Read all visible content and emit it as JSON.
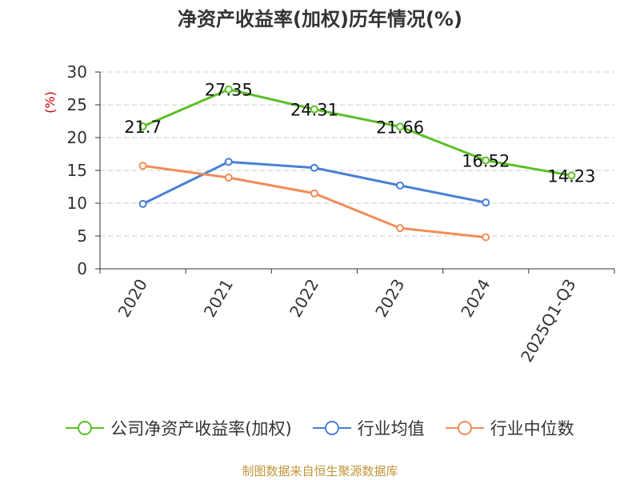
{
  "chart_data": {
    "type": "line",
    "title": "净资产收益率(加权)历年情况(%)",
    "ylabel": "(%)",
    "xlabel": "",
    "ylim": [
      0,
      30
    ],
    "yticks": [
      0,
      5,
      10,
      15,
      20,
      25,
      30
    ],
    "categories": [
      "2020",
      "2021",
      "2022",
      "2023",
      "2024",
      "2025Q1-Q3"
    ],
    "grid": true,
    "legend_position": "bottom",
    "series": [
      {
        "name": "公司净资产收益率(加权)",
        "color": "#5cbf27",
        "values": [
          21.7,
          27.35,
          24.31,
          21.66,
          16.52,
          14.23
        ],
        "labels": [
          "21.7",
          "27.35",
          "24.31",
          "21.66",
          "16.52",
          "14.23"
        ]
      },
      {
        "name": "行业均值",
        "color": "#4a7fd6",
        "values": [
          9.9,
          16.3,
          15.4,
          12.7,
          10.1,
          null
        ]
      },
      {
        "name": "行业中位数",
        "color": "#f28c5a",
        "values": [
          15.7,
          13.9,
          11.5,
          6.2,
          4.8,
          null
        ]
      }
    ]
  },
  "footer": {
    "source": "制图数据来自恒生聚源数据库"
  }
}
